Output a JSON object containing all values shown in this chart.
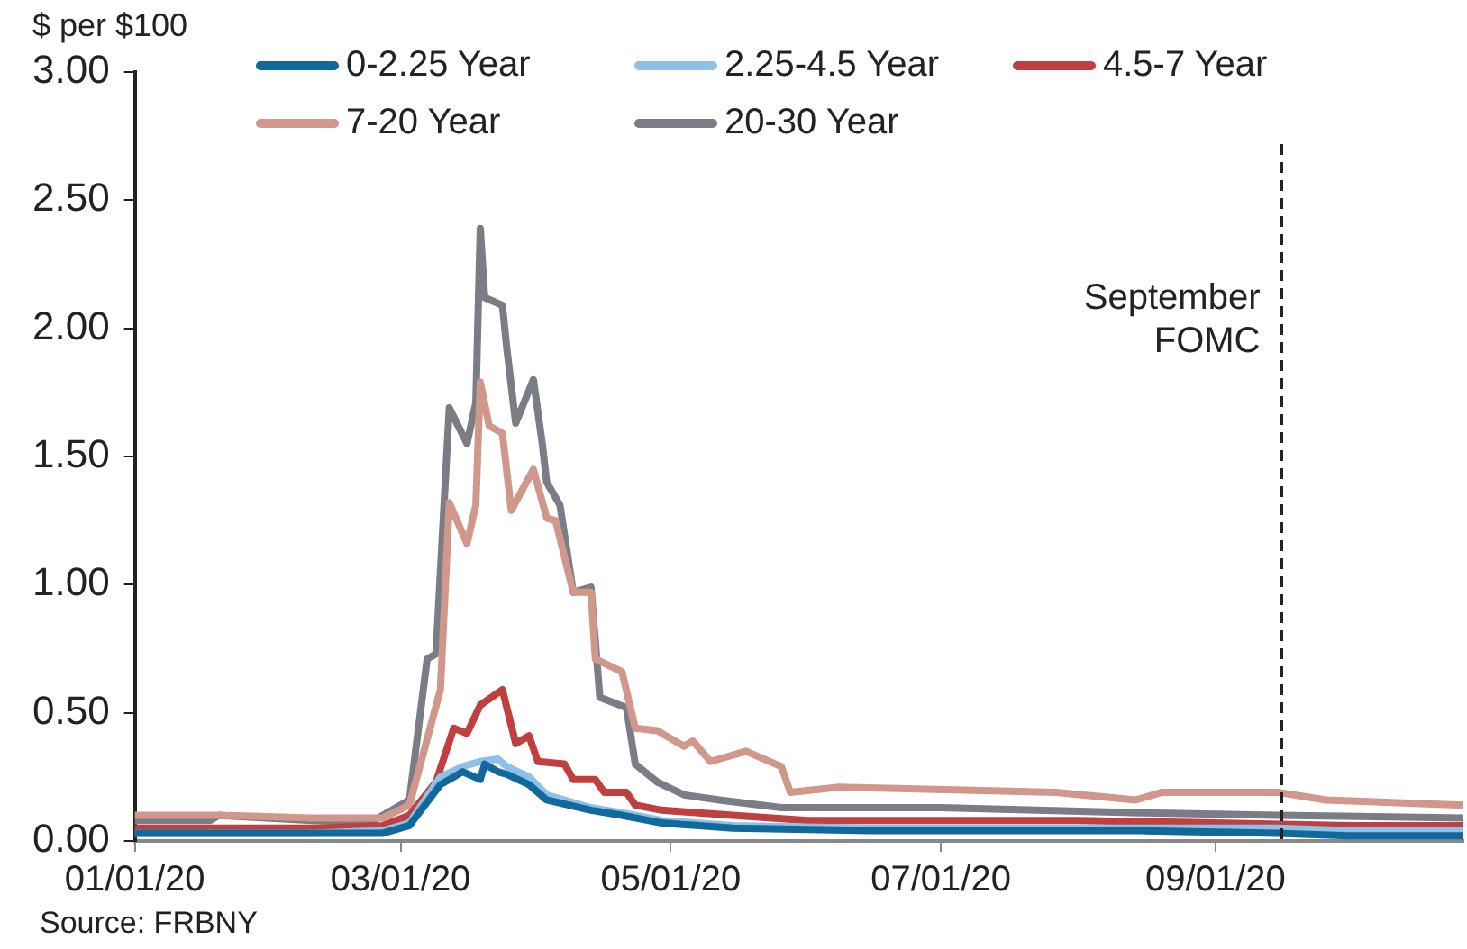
{
  "chart_data": {
    "type": "line",
    "ylabel": "$ per $100",
    "annotations": [
      "Source: FRBNY"
    ],
    "xlim": [
      "2020-01-01",
      "2020-10-27"
    ],
    "xticks": [
      {
        "value": "2020-01-01",
        "label": "01/01/20"
      },
      {
        "value": "2020-03-01",
        "label": "03/01/20"
      },
      {
        "value": "2020-05-01",
        "label": "05/01/20"
      },
      {
        "value": "2020-07-01",
        "label": "07/01/20"
      },
      {
        "value": "2020-09-01",
        "label": "09/01/20"
      }
    ],
    "ylim": [
      0,
      3
    ],
    "yticks": [
      {
        "value": 0,
        "label": "0.00"
      },
      {
        "value": 0.5,
        "label": "0.50"
      },
      {
        "value": 1,
        "label": "1.00"
      },
      {
        "value": 1.5,
        "label": "1.50"
      },
      {
        "value": 2,
        "label": "2.00"
      },
      {
        "value": 2.5,
        "label": "2.50"
      },
      {
        "value": 3,
        "label": "3.00"
      }
    ],
    "grid": false,
    "legend": "top",
    "marker": "none",
    "line_style": "solid",
    "ref_lines": [
      {
        "axis": "x",
        "value": "2020-09-16",
        "label": "September FOMC",
        "color": "#222222",
        "line_style": "dashed"
      }
    ],
    "series": [
      {
        "name": "0-2.25 Year",
        "color": "#11699b",
        "x": [
          "2020-01-01",
          "2020-01-20",
          "2020-02-10",
          "2020-02-26",
          "2020-03-03",
          "2020-03-10",
          "2020-03-15",
          "2020-03-19",
          "2020-03-20",
          "2020-03-23",
          "2020-03-25",
          "2020-03-30",
          "2020-04-03",
          "2020-04-13",
          "2020-04-20",
          "2020-04-29",
          "2020-05-15",
          "2020-06-15",
          "2020-07-15",
          "2020-08-15",
          "2020-09-15",
          "2020-10-01",
          "2020-10-27"
        ],
        "values": [
          0.03,
          0.03,
          0.03,
          0.03,
          0.06,
          0.22,
          0.27,
          0.24,
          0.3,
          0.27,
          0.26,
          0.22,
          0.16,
          0.12,
          0.1,
          0.07,
          0.05,
          0.04,
          0.04,
          0.04,
          0.03,
          0.02,
          0.02
        ]
      },
      {
        "name": "2.25-4.5 Year",
        "color": "#8dc1e9",
        "x": [
          "2020-01-01",
          "2020-01-20",
          "2020-02-10",
          "2020-02-26",
          "2020-03-03",
          "2020-03-10",
          "2020-03-15",
          "2020-03-19",
          "2020-03-23",
          "2020-03-25",
          "2020-03-30",
          "2020-04-03",
          "2020-04-13",
          "2020-04-20",
          "2020-04-29",
          "2020-05-15",
          "2020-06-15",
          "2020-07-15",
          "2020-08-15",
          "2020-09-15",
          "2020-10-01",
          "2020-10-27"
        ],
        "values": [
          0.03,
          0.03,
          0.03,
          0.04,
          0.07,
          0.25,
          0.29,
          0.31,
          0.32,
          0.29,
          0.25,
          0.18,
          0.13,
          0.11,
          0.08,
          0.06,
          0.05,
          0.05,
          0.05,
          0.05,
          0.04,
          0.04
        ]
      },
      {
        "name": "4.5-7 Year",
        "color": "#c0403f",
        "x": [
          "2020-01-01",
          "2020-01-20",
          "2020-02-10",
          "2020-02-26",
          "2020-03-03",
          "2020-03-09",
          "2020-03-13",
          "2020-03-16",
          "2020-03-19",
          "2020-03-24",
          "2020-03-27",
          "2020-03-30",
          "2020-04-01",
          "2020-04-07",
          "2020-04-09",
          "2020-04-14",
          "2020-04-16",
          "2020-04-21",
          "2020-04-23",
          "2020-04-29",
          "2020-05-15",
          "2020-06-01",
          "2020-07-01",
          "2020-08-01",
          "2020-09-01",
          "2020-10-01",
          "2020-10-27"
        ],
        "values": [
          0.05,
          0.05,
          0.05,
          0.06,
          0.1,
          0.23,
          0.44,
          0.42,
          0.53,
          0.59,
          0.38,
          0.41,
          0.31,
          0.3,
          0.24,
          0.24,
          0.19,
          0.19,
          0.14,
          0.12,
          0.1,
          0.08,
          0.08,
          0.08,
          0.07,
          0.06,
          0.06
        ]
      },
      {
        "name": "7-20 Year",
        "color": "#d0978a",
        "x": [
          "2020-01-01",
          "2020-01-20",
          "2020-02-10",
          "2020-02-26",
          "2020-03-03",
          "2020-03-10",
          "2020-03-12",
          "2020-03-16",
          "2020-03-18",
          "2020-03-19",
          "2020-03-21",
          "2020-03-24",
          "2020-03-26",
          "2020-03-31",
          "2020-04-03",
          "2020-04-05",
          "2020-04-09",
          "2020-04-13",
          "2020-04-14",
          "2020-04-20",
          "2020-04-23",
          "2020-04-28",
          "2020-05-04",
          "2020-05-06",
          "2020-05-10",
          "2020-05-18",
          "2020-05-26",
          "2020-05-28",
          "2020-06-08",
          "2020-07-02",
          "2020-07-27",
          "2020-08-14",
          "2020-08-20",
          "2020-09-15",
          "2020-09-26",
          "2020-10-27"
        ],
        "values": [
          0.1,
          0.1,
          0.09,
          0.09,
          0.14,
          0.59,
          1.32,
          1.16,
          1.31,
          1.79,
          1.62,
          1.59,
          1.29,
          1.45,
          1.26,
          1.25,
          0.97,
          0.97,
          0.71,
          0.66,
          0.44,
          0.43,
          0.37,
          0.39,
          0.31,
          0.35,
          0.29,
          0.19,
          0.21,
          0.2,
          0.19,
          0.16,
          0.19,
          0.19,
          0.16,
          0.14
        ]
      },
      {
        "name": "20-30 Year",
        "color": "#7b7d86",
        "x": [
          "2020-01-01",
          "2020-01-18",
          "2020-01-20",
          "2020-02-10",
          "2020-02-24",
          "2020-03-03",
          "2020-03-07",
          "2020-03-09",
          "2020-03-12",
          "2020-03-16",
          "2020-03-18",
          "2020-03-19",
          "2020-03-20",
          "2020-03-24",
          "2020-03-25",
          "2020-03-27",
          "2020-03-31",
          "2020-04-02",
          "2020-04-03",
          "2020-04-06",
          "2020-04-09",
          "2020-04-13",
          "2020-04-15",
          "2020-04-21",
          "2020-04-23",
          "2020-04-28",
          "2020-05-04",
          "2020-05-12",
          "2020-05-26",
          "2020-07-01",
          "2020-08-15",
          "2020-09-15",
          "2020-10-27"
        ],
        "values": [
          0.08,
          0.08,
          0.1,
          0.08,
          0.08,
          0.16,
          0.71,
          0.73,
          1.69,
          1.55,
          1.71,
          2.39,
          2.12,
          2.09,
          1.92,
          1.63,
          1.8,
          1.55,
          1.4,
          1.31,
          0.97,
          0.99,
          0.56,
          0.52,
          0.3,
          0.23,
          0.18,
          0.16,
          0.13,
          0.13,
          0.11,
          0.1,
          0.09
        ]
      }
    ]
  }
}
